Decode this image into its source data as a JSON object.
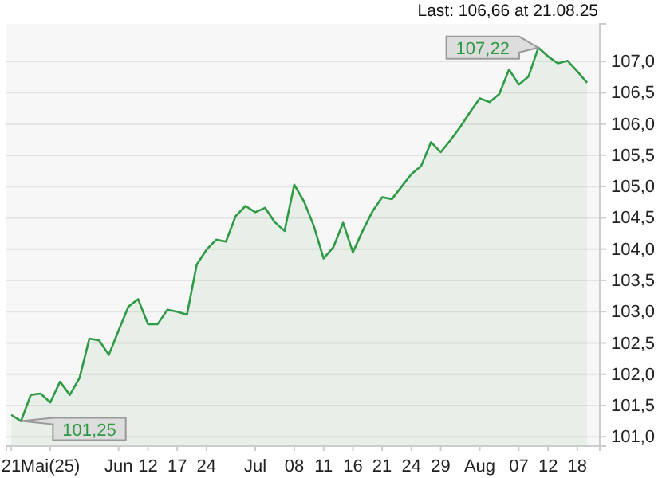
{
  "chart_data": {
    "type": "area",
    "categories": [
      "21",
      null,
      null,
      null,
      "Mai(25)",
      null,
      null,
      null,
      null,
      null,
      null,
      "Jun",
      null,
      null,
      "12",
      null,
      null,
      "17",
      null,
      null,
      "24",
      null,
      null,
      null,
      null,
      "Jul",
      null,
      null,
      null,
      "08",
      null,
      null,
      "11",
      null,
      null,
      "16",
      null,
      null,
      "21",
      null,
      null,
      "24",
      null,
      null,
      "29",
      null,
      null,
      null,
      "Aug",
      null,
      null,
      null,
      "07",
      null,
      null,
      "12",
      null,
      null,
      "18",
      null
    ],
    "series": [
      {
        "color": "#2e9a44",
        "values": [
          101.35,
          101.25,
          101.67,
          101.69,
          101.55,
          101.88,
          101.67,
          101.94,
          102.57,
          102.54,
          102.31,
          102.7,
          103.08,
          103.2,
          102.8,
          102.8,
          103.03,
          103.0,
          102.95,
          103.75,
          103.99,
          104.15,
          104.12,
          104.53,
          104.69,
          104.59,
          104.66,
          104.43,
          104.29,
          105.03,
          104.76,
          104.37,
          103.85,
          104.03,
          104.42,
          103.95,
          104.29,
          104.6,
          104.83,
          104.8,
          105.0,
          105.2,
          105.33,
          105.71,
          105.55,
          105.74,
          105.95,
          106.19,
          106.41,
          106.35,
          106.48,
          106.87,
          106.63,
          106.76,
          107.22,
          107.08,
          106.97,
          107.01,
          106.84,
          106.66
        ]
      }
    ],
    "ylim": [
      100.85,
      107.6
    ],
    "yticks": [
      {
        "value": 101,
        "label": "101,0"
      },
      {
        "value": 101.5,
        "label": "101,5"
      },
      {
        "value": 102,
        "label": "102,0"
      },
      {
        "value": 102.5,
        "label": "102,5"
      },
      {
        "value": 103,
        "label": "103,0"
      },
      {
        "value": 103.5,
        "label": "103,5"
      },
      {
        "value": 104,
        "label": "104,0"
      },
      {
        "value": 104.5,
        "label": "104,5"
      },
      {
        "value": 105,
        "label": "105,0"
      },
      {
        "value": 105.5,
        "label": "105,5"
      },
      {
        "value": 106,
        "label": "106,0"
      },
      {
        "value": 106.5,
        "label": "106,5"
      },
      {
        "value": 107,
        "label": "107,0"
      }
    ],
    "grid": "y",
    "annotations": [
      "Last: 106,66 at 21.08.25",
      "107,22",
      "101,25"
    ]
  }
}
